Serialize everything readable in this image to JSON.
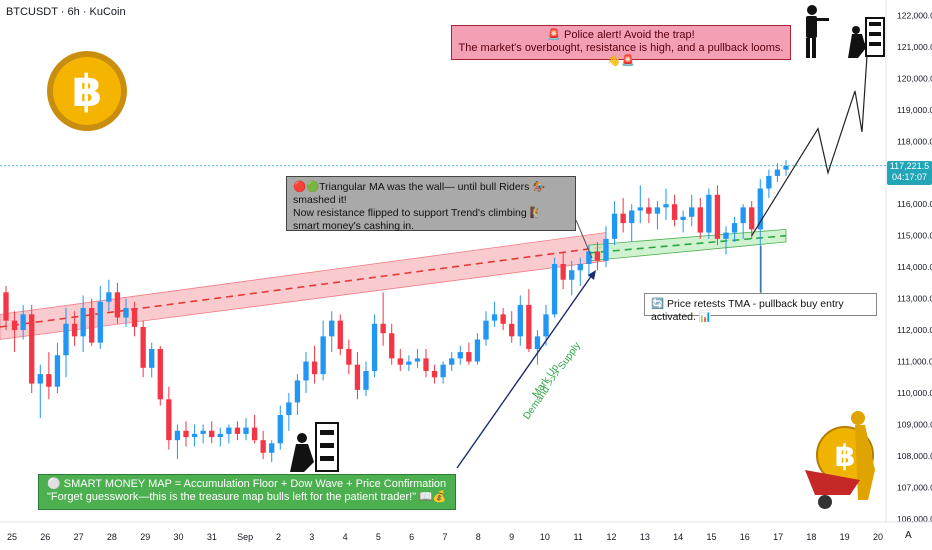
{
  "header": {
    "ticker": "BTCUSDT · 6h · KuCoin"
  },
  "price_badge": {
    "price": "117,221.5",
    "countdown": "04:17:07"
  },
  "annotations": {
    "police": {
      "line1": "🚨 Police alert!  Avoid the trap!",
      "line2": "The market's overbought, resistance is high, and a pullback looms.👋🚨"
    },
    "tma": {
      "line1": "🔴🟢Triangular MA was the wall— until bull Riders 🏇 smashed it!",
      "line2": "Now resistance flipped to support Trend's climbing 🧗",
      "line3": "smart money's cashing in."
    },
    "retest": {
      "text": "🔄 Price retests TMA - pullback buy entry activated. 📊"
    },
    "map": {
      "line1": "⚪ SMART MONEY MAP = Accumulation Floor + Dow Wave + Price Confirmation",
      "line2": "\"Forget guesswork—this is the treasure map bulls left for the patient trader!\" 📖💰"
    },
    "markup": "Mark Up",
    "demand": "Demand >>> Supply"
  },
  "auto_label": "A",
  "colors": {
    "up": "#2196f3",
    "down": "#f23645",
    "tma_band": "#f8b9bd",
    "support_band": "#c8f0c8",
    "support_line": "#28a745",
    "badge": "#22a5b7"
  },
  "icons": [
    "bitcoin-coin-icon",
    "police-silhouette-icon",
    "thief-silhouette-icon",
    "golden-man-wheelbarrow-icon"
  ],
  "chart_data": {
    "type": "candlestick",
    "x_ticks": [
      "25",
      "26",
      "27",
      "28",
      "29",
      "30",
      "31",
      "Sep",
      "2",
      "3",
      "4",
      "5",
      "6",
      "7",
      "8",
      "9",
      "10",
      "11",
      "12",
      "13",
      "14",
      "15",
      "16",
      "17",
      "18",
      "19",
      "20"
    ],
    "y_ticks": [
      "106,000.0",
      "107,000.0",
      "108,000.0",
      "109,000.0",
      "110,000.0",
      "111,000.0",
      "112,000.0",
      "113,000.0",
      "114,000.0",
      "115,000.0",
      "116,000.0",
      "117,000.0",
      "118,000.0",
      "119,000.0",
      "120,000.0",
      "121,000.0",
      "122,000.0"
    ],
    "ylim": [
      105900,
      122300
    ],
    "last_price": 117221.5,
    "candles": [
      {
        "o": 113200,
        "h": 113400,
        "l": 112000,
        "c": 112300
      },
      {
        "o": 112300,
        "h": 112600,
        "l": 111300,
        "c": 112000
      },
      {
        "o": 112000,
        "h": 112800,
        "l": 111700,
        "c": 112500
      },
      {
        "o": 112500,
        "h": 112800,
        "l": 110000,
        "c": 110300
      },
      {
        "o": 110300,
        "h": 110900,
        "l": 109200,
        "c": 110600
      },
      {
        "o": 110600,
        "h": 111300,
        "l": 109800,
        "c": 110200
      },
      {
        "o": 110200,
        "h": 111600,
        "l": 110000,
        "c": 111200
      },
      {
        "o": 111200,
        "h": 112700,
        "l": 110500,
        "c": 112200
      },
      {
        "o": 112200,
        "h": 112600,
        "l": 111500,
        "c": 111800
      },
      {
        "o": 111800,
        "h": 113100,
        "l": 111300,
        "c": 112700
      },
      {
        "o": 112700,
        "h": 113000,
        "l": 111500,
        "c": 111600
      },
      {
        "o": 111600,
        "h": 113400,
        "l": 111400,
        "c": 112900
      },
      {
        "o": 112900,
        "h": 113600,
        "l": 112600,
        "c": 113200
      },
      {
        "o": 113200,
        "h": 113500,
        "l": 112200,
        "c": 112400
      },
      {
        "o": 112400,
        "h": 113000,
        "l": 112100,
        "c": 112700
      },
      {
        "o": 112700,
        "h": 112900,
        "l": 111800,
        "c": 112100
      },
      {
        "o": 112100,
        "h": 112300,
        "l": 110500,
        "c": 110800
      },
      {
        "o": 110800,
        "h": 111600,
        "l": 110500,
        "c": 111400
      },
      {
        "o": 111400,
        "h": 111500,
        "l": 109600,
        "c": 109800
      },
      {
        "o": 109800,
        "h": 110200,
        "l": 108200,
        "c": 108500
      },
      {
        "o": 108500,
        "h": 109000,
        "l": 107900,
        "c": 108800
      },
      {
        "o": 108800,
        "h": 109100,
        "l": 108300,
        "c": 108600
      },
      {
        "o": 108600,
        "h": 109000,
        "l": 108300,
        "c": 108700
      },
      {
        "o": 108700,
        "h": 109000,
        "l": 108400,
        "c": 108800
      },
      {
        "o": 108800,
        "h": 109100,
        "l": 108400,
        "c": 108600
      },
      {
        "o": 108600,
        "h": 108900,
        "l": 108300,
        "c": 108700
      },
      {
        "o": 108700,
        "h": 109000,
        "l": 108400,
        "c": 108900
      },
      {
        "o": 108900,
        "h": 109100,
        "l": 108500,
        "c": 108700
      },
      {
        "o": 108700,
        "h": 109200,
        "l": 108500,
        "c": 108900
      },
      {
        "o": 108900,
        "h": 109300,
        "l": 108400,
        "c": 108500
      },
      {
        "o": 108500,
        "h": 108800,
        "l": 107900,
        "c": 108100
      },
      {
        "o": 108100,
        "h": 108500,
        "l": 107800,
        "c": 108400
      },
      {
        "o": 108400,
        "h": 109600,
        "l": 108200,
        "c": 109300
      },
      {
        "o": 109300,
        "h": 110000,
        "l": 108800,
        "c": 109700
      },
      {
        "o": 109700,
        "h": 110600,
        "l": 109300,
        "c": 110400
      },
      {
        "o": 110400,
        "h": 111300,
        "l": 110000,
        "c": 111000
      },
      {
        "o": 111000,
        "h": 111500,
        "l": 110300,
        "c": 110600
      },
      {
        "o": 110600,
        "h": 112300,
        "l": 110400,
        "c": 111800
      },
      {
        "o": 111800,
        "h": 112600,
        "l": 111300,
        "c": 112300
      },
      {
        "o": 112300,
        "h": 112500,
        "l": 111200,
        "c": 111400
      },
      {
        "o": 111400,
        "h": 111700,
        "l": 110600,
        "c": 110900
      },
      {
        "o": 110900,
        "h": 111300,
        "l": 109800,
        "c": 110100
      },
      {
        "o": 110100,
        "h": 111000,
        "l": 109900,
        "c": 110700
      },
      {
        "o": 110700,
        "h": 112500,
        "l": 110500,
        "c": 112200
      },
      {
        "o": 112200,
        "h": 113200,
        "l": 111500,
        "c": 111900
      },
      {
        "o": 111900,
        "h": 112200,
        "l": 110900,
        "c": 111100
      },
      {
        "o": 111100,
        "h": 111400,
        "l": 110700,
        "c": 110900
      },
      {
        "o": 110900,
        "h": 111200,
        "l": 110700,
        "c": 111000
      },
      {
        "o": 111000,
        "h": 111400,
        "l": 110800,
        "c": 111100
      },
      {
        "o": 111100,
        "h": 111400,
        "l": 110500,
        "c": 110700
      },
      {
        "o": 110700,
        "h": 110900,
        "l": 110300,
        "c": 110500
      },
      {
        "o": 110500,
        "h": 111000,
        "l": 110300,
        "c": 110900
      },
      {
        "o": 110900,
        "h": 111300,
        "l": 110700,
        "c": 111100
      },
      {
        "o": 111100,
        "h": 111500,
        "l": 110900,
        "c": 111300
      },
      {
        "o": 111300,
        "h": 111600,
        "l": 110900,
        "c": 111000
      },
      {
        "o": 111000,
        "h": 111900,
        "l": 110900,
        "c": 111700
      },
      {
        "o": 111700,
        "h": 112600,
        "l": 111500,
        "c": 112300
      },
      {
        "o": 112300,
        "h": 112900,
        "l": 112100,
        "c": 112500
      },
      {
        "o": 112500,
        "h": 112700,
        "l": 112000,
        "c": 112200
      },
      {
        "o": 112200,
        "h": 112600,
        "l": 111600,
        "c": 111800
      },
      {
        "o": 111800,
        "h": 113100,
        "l": 111500,
        "c": 112800
      },
      {
        "o": 112800,
        "h": 113300,
        "l": 111300,
        "c": 111400
      },
      {
        "o": 111400,
        "h": 112000,
        "l": 110900,
        "c": 111800
      },
      {
        "o": 111800,
        "h": 112800,
        "l": 111500,
        "c": 112500
      },
      {
        "o": 112500,
        "h": 114300,
        "l": 112400,
        "c": 114100
      },
      {
        "o": 114100,
        "h": 114500,
        "l": 113300,
        "c": 113600
      },
      {
        "o": 113600,
        "h": 114200,
        "l": 113100,
        "c": 113900
      },
      {
        "o": 113900,
        "h": 114300,
        "l": 113400,
        "c": 114100
      },
      {
        "o": 114100,
        "h": 114700,
        "l": 113700,
        "c": 114500
      },
      {
        "o": 114500,
        "h": 114800,
        "l": 113900,
        "c": 114200
      },
      {
        "o": 114200,
        "h": 115300,
        "l": 114000,
        "c": 114900
      },
      {
        "o": 114900,
        "h": 116100,
        "l": 114700,
        "c": 115700
      },
      {
        "o": 115700,
        "h": 116200,
        "l": 115100,
        "c": 115400
      },
      {
        "o": 115400,
        "h": 116000,
        "l": 114800,
        "c": 115800
      },
      {
        "o": 115800,
        "h": 116600,
        "l": 115400,
        "c": 115900
      },
      {
        "o": 115900,
        "h": 116200,
        "l": 115400,
        "c": 115700
      },
      {
        "o": 115700,
        "h": 116100,
        "l": 115200,
        "c": 115900
      },
      {
        "o": 115900,
        "h": 116500,
        "l": 115500,
        "c": 116000
      },
      {
        "o": 116000,
        "h": 116300,
        "l": 115300,
        "c": 115500
      },
      {
        "o": 115500,
        "h": 115800,
        "l": 115100,
        "c": 115600
      },
      {
        "o": 115600,
        "h": 116300,
        "l": 115300,
        "c": 115900
      },
      {
        "o": 115900,
        "h": 116200,
        "l": 114900,
        "c": 115100
      },
      {
        "o": 115100,
        "h": 116500,
        "l": 114900,
        "c": 116300
      },
      {
        "o": 116300,
        "h": 116600,
        "l": 114700,
        "c": 114900
      },
      {
        "o": 114900,
        "h": 115300,
        "l": 114400,
        "c": 115100
      },
      {
        "o": 115100,
        "h": 115600,
        "l": 114800,
        "c": 115400
      },
      {
        "o": 115400,
        "h": 116000,
        "l": 114900,
        "c": 115900
      },
      {
        "o": 115900,
        "h": 116100,
        "l": 114900,
        "c": 115200
      },
      {
        "o": 115200,
        "h": 116800,
        "l": 113200,
        "c": 116500
      },
      {
        "o": 116500,
        "h": 117100,
        "l": 116200,
        "c": 116900
      },
      {
        "o": 116900,
        "h": 117300,
        "l": 116700,
        "c": 117100
      },
      {
        "o": 117100,
        "h": 117400,
        "l": 116900,
        "c": 117221.5
      }
    ],
    "tma_band": {
      "start": [
        111700,
        112500
      ],
      "end": [
        114200,
        115100
      ]
    },
    "support_band": {
      "start": [
        114200,
        114700
      ],
      "end": [
        114800,
        115200
      ]
    },
    "projection": [
      [
        117221.5,
        115000
      ],
      [
        118400,
        117900
      ],
      [
        117300,
        120500
      ],
      [
        118200,
        121200
      ]
    ]
  }
}
